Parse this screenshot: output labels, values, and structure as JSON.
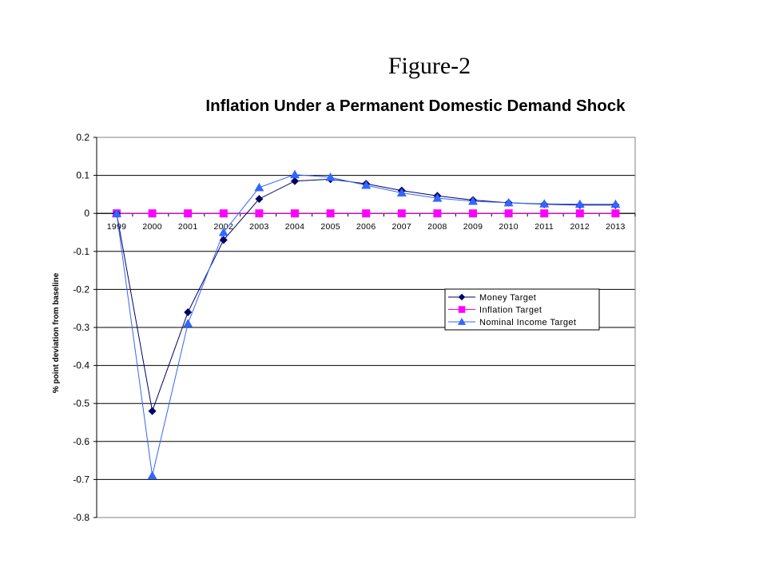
{
  "figure_label": "Figure-2",
  "chart_data": {
    "type": "line",
    "title": "Inflation Under a Permanent Domestic Demand Shock",
    "ylabel": "% point deviation from baseline",
    "xlabel": "",
    "categories": [
      "1999",
      "2000",
      "2001",
      "2002",
      "2003",
      "2004",
      "2005",
      "2006",
      "2007",
      "2008",
      "2009",
      "2010",
      "2011",
      "2012",
      "2013"
    ],
    "ylim": [
      -0.8,
      0.2
    ],
    "yticks": [
      0.2,
      0.1,
      0,
      -0.1,
      -0.2,
      -0.3,
      -0.4,
      -0.5,
      -0.6,
      -0.7,
      -0.8
    ],
    "ytick_labels": [
      "0.2",
      "0.1",
      "0",
      "-0.1",
      "-0.2",
      "-0.3",
      "-0.4",
      "-0.5",
      "-0.6",
      "-0.7",
      "-0.8"
    ],
    "grid": true,
    "legend_position": "right-middle",
    "series": [
      {
        "name": "Money Target",
        "color": "#000066",
        "marker": "diamond",
        "values": [
          0,
          -0.52,
          -0.26,
          -0.07,
          0.038,
          0.085,
          0.09,
          0.078,
          0.06,
          0.046,
          0.035,
          0.028,
          0.024,
          0.022,
          0.022
        ]
      },
      {
        "name": "Inflation Target",
        "color": "#FF00FF",
        "marker": "square",
        "values": [
          0,
          0,
          0,
          0,
          0,
          0,
          0,
          0,
          0,
          0,
          0,
          0,
          0,
          0,
          0
        ]
      },
      {
        "name": "Nominal Income Target",
        "color": "#3366FF",
        "marker": "triangle",
        "values": [
          0,
          -0.69,
          -0.29,
          -0.05,
          0.068,
          0.102,
          0.095,
          0.074,
          0.054,
          0.04,
          0.032,
          0.028,
          0.025,
          0.024,
          0.024
        ]
      }
    ]
  }
}
